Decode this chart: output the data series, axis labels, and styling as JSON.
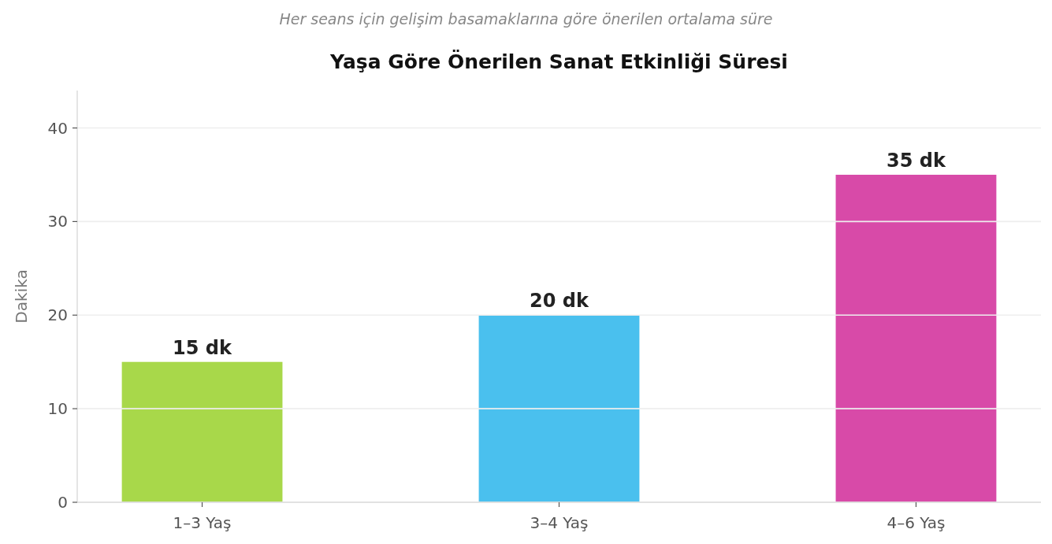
{
  "chart_data": {
    "type": "bar",
    "title": "Yaşa Göre Önerilen Sanat Etkinliği Süresi",
    "subtitle": "Her seans için gelişim basamaklarına göre önerilen ortalama süre",
    "ylabel": "Dakika",
    "categories": [
      "1–3 Yaş",
      "3–4 Yaş",
      "4–6 Yaş"
    ],
    "values": [
      15,
      20,
      35
    ],
    "colors": [
      "#a8d84a",
      "#4ac0ee",
      "#d84aa8"
    ],
    "value_labels": [
      "15 dk",
      "20 dk",
      "35 dk"
    ],
    "ylim": [
      0,
      44
    ],
    "yticks": [
      0,
      10,
      20,
      30,
      40
    ],
    "grid": "y"
  }
}
